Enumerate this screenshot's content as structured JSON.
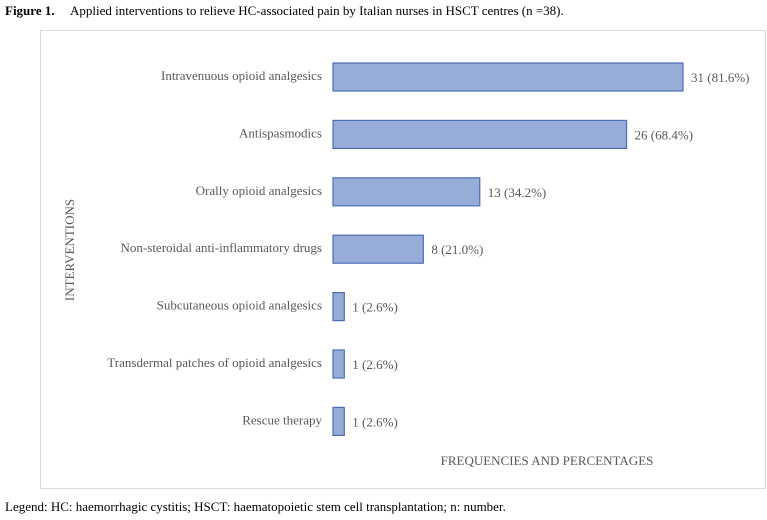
{
  "chart_data": {
    "type": "barh",
    "figure_label": "Figure 1.",
    "title": "Applied interventions to relieve HC-associated pain by Italian nurses in HSCT centres (n =38).",
    "y_label": "INTERVENTIONS",
    "x_label": "FREQUENCIES AND PERCENTAGES",
    "categories": [
      "Intravenuous opioid analgesics",
      "Antispasmodics",
      "Orally opioid analgesics",
      "Non-steroidal anti-inflammatory drugs",
      "Subcutaneous opioid analgesics",
      "Transdermal patches of opioid analgesics",
      "Rescue therapy"
    ],
    "values": [
      31,
      26,
      13,
      8,
      1,
      1,
      1
    ],
    "value_labels": [
      "31 (81.6%)",
      "26 (68.4%)",
      "13 (34.2%)",
      "8 (21.0%)",
      "1 (2.6%)",
      "1 (2.6%)",
      "1 (2.6%)"
    ],
    "color": "#98acd8",
    "caption": "Legend: HC: haemorrhagic cystitis; HSCT: haematopoietic stem cell transplantation; n: number."
  }
}
